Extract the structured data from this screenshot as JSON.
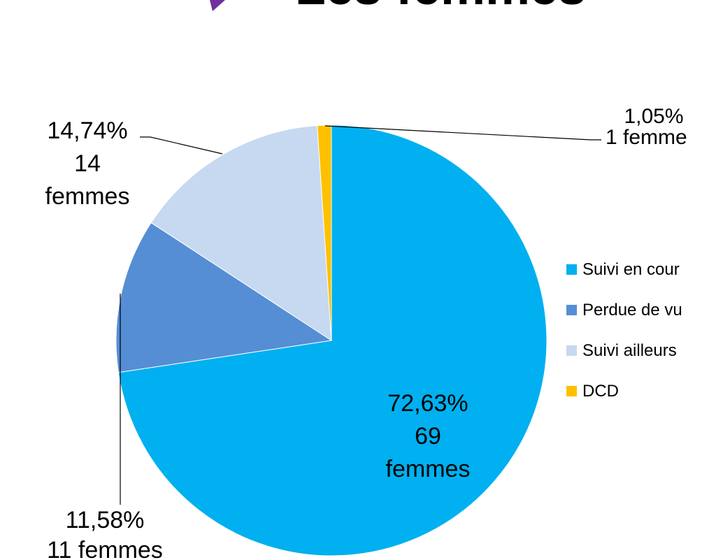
{
  "chart_data": {
    "type": "pie",
    "title": "Les femmes",
    "categories": [
      "Suivi en cour",
      "Perdue de vu",
      "Suivi ailleurs",
      "DCD"
    ],
    "values": [
      72.63,
      11.58,
      14.74,
      1.05
    ],
    "value_labels": [
      "72,63%",
      "11,58%",
      "14,74%",
      "1,05%"
    ],
    "count_labels": [
      [
        "69",
        "femmes"
      ],
      [
        "11 femmes"
      ],
      [
        "14",
        "femmes"
      ],
      [
        "1 femme"
      ]
    ],
    "colors": [
      "#00b0f0",
      "#558ed5",
      "#c6d9f1",
      "#ffc000"
    ],
    "legend": "right"
  }
}
